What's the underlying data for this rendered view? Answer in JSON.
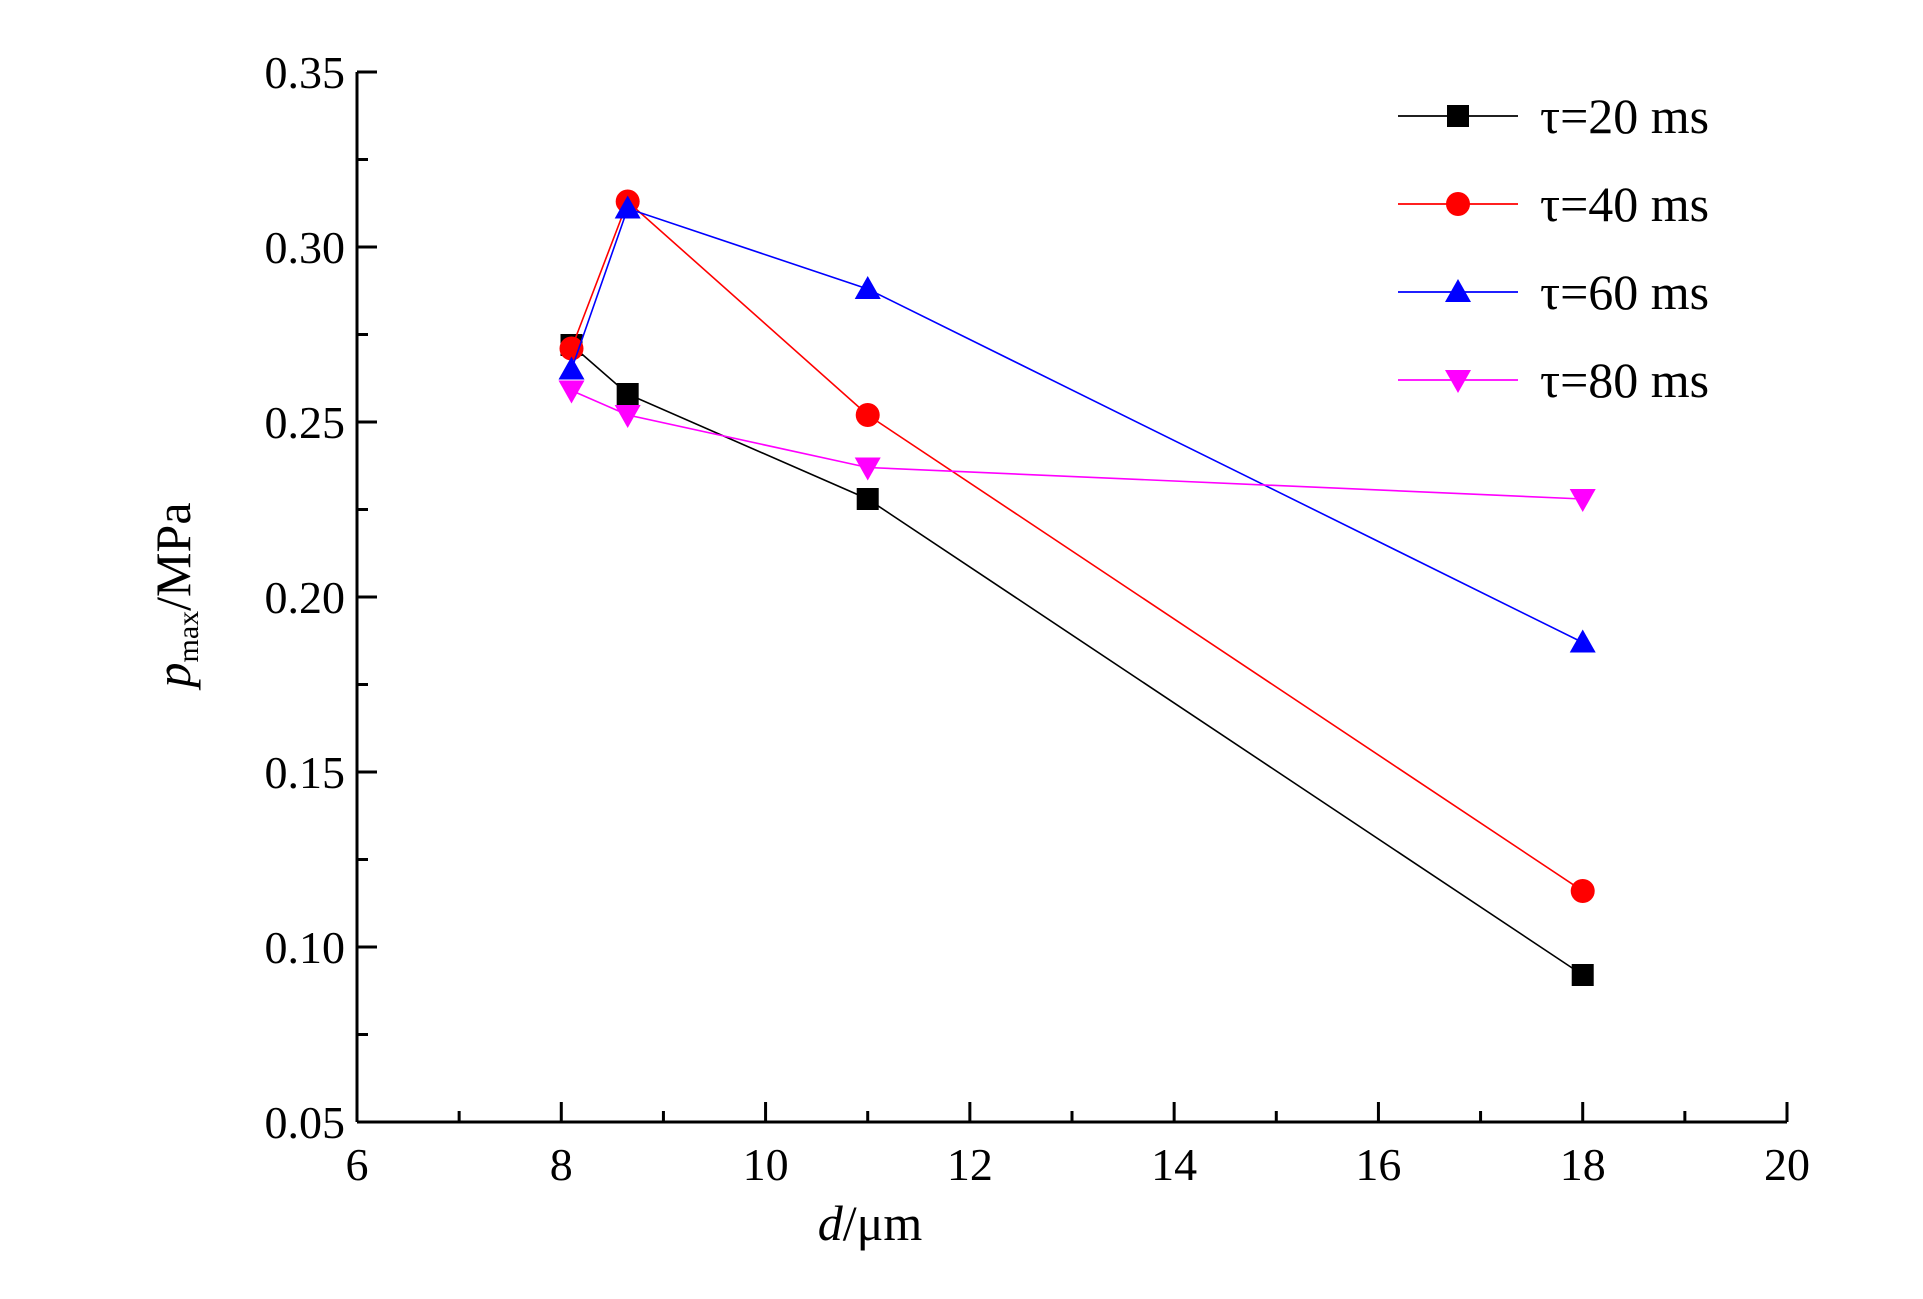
{
  "chart_data": {
    "type": "line",
    "title": "",
    "xlabel": {
      "italic": "d",
      "unit": "/μm"
    },
    "ylabel": {
      "italic": "p",
      "sub": "max",
      "unit": "/MPa"
    },
    "xlim": [
      6,
      20
    ],
    "ylim": [
      0.05,
      0.35
    ],
    "x_ticks": [
      "6",
      "8",
      "10",
      "12",
      "14",
      "16",
      "18",
      "20"
    ],
    "y_ticks": [
      "0.05",
      "0.10",
      "0.15",
      "0.20",
      "0.25",
      "0.30",
      "0.35"
    ],
    "grid": false,
    "legend_position": "top-right",
    "series": [
      {
        "name": "τ=20 ms",
        "color": "#000000",
        "marker": "square",
        "points": [
          [
            8.1,
            0.272
          ],
          [
            8.65,
            0.258
          ],
          [
            11.0,
            0.228
          ],
          [
            18.0,
            0.092
          ]
        ]
      },
      {
        "name": "τ=40 ms",
        "color": "#ff0000",
        "marker": "circle",
        "points": [
          [
            8.1,
            0.271
          ],
          [
            8.65,
            0.313
          ],
          [
            11.0,
            0.252
          ],
          [
            18.0,
            0.116
          ]
        ]
      },
      {
        "name": "τ=60 ms",
        "color": "#0000ff",
        "marker": "triangle-up",
        "points": [
          [
            8.1,
            0.265
          ],
          [
            8.65,
            0.311
          ],
          [
            11.0,
            0.288
          ],
          [
            18.0,
            0.187
          ]
        ]
      },
      {
        "name": "τ=80 ms",
        "color": "#ff00ff",
        "marker": "triangle-down",
        "points": [
          [
            8.1,
            0.259
          ],
          [
            8.65,
            0.252
          ],
          [
            11.0,
            0.237
          ],
          [
            18.0,
            0.228
          ]
        ]
      }
    ]
  }
}
